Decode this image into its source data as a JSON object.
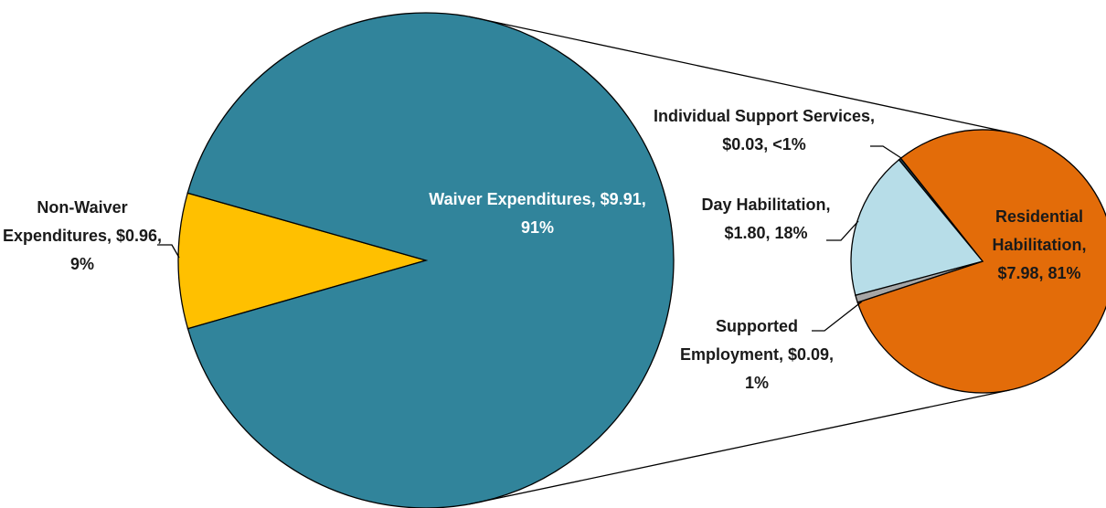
{
  "chart_data": [
    {
      "type": "pie",
      "categories": [
        "Non-Waiver Expenditures,",
        "Waiver Expenditures,"
      ],
      "values": [
        0.96,
        9.91
      ],
      "value_labels": [
        "$0.96, 9%",
        "$9.91, 91%"
      ],
      "colors": [
        "#ffc000",
        "#31849b"
      ]
    },
    {
      "type": "pie",
      "categories": [
        "Individual Support Services,",
        "Residential Habilitation,",
        "Supported Employment,",
        "Day Habilitation,"
      ],
      "values": [
        0.03,
        7.98,
        0.09,
        1.8
      ],
      "value_labels": [
        "$0.03, <1%",
        "$7.98, 81%",
        "$0.09, 1%",
        "$1.80, 18%"
      ],
      "colors": [
        "#1f3e4f",
        "#e36c09",
        "#a6a6a6",
        "#b7dde8"
      ]
    }
  ]
}
